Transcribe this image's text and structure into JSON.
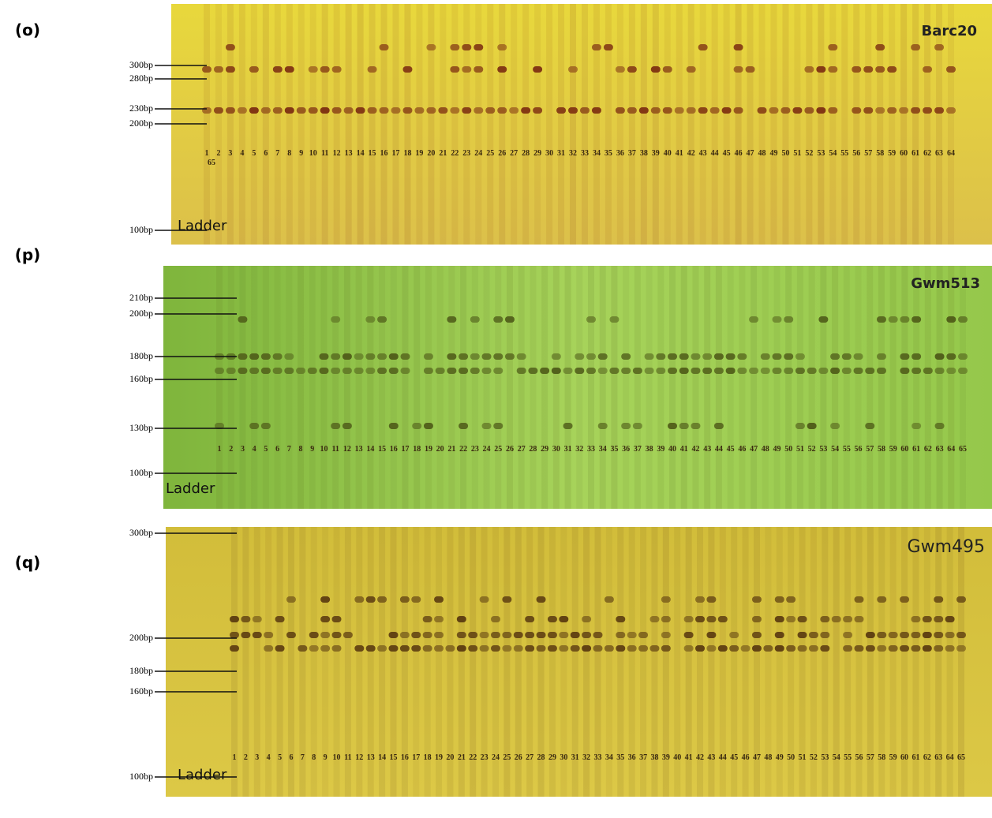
{
  "panels": [
    {
      "label": "(o)",
      "marker": "Barc20",
      "ladder": "Ladder",
      "size_labels": [
        "300bp",
        "280bp",
        "230bp",
        "200bp",
        "100bp"
      ],
      "lanes": [
        "1",
        "2",
        "3",
        "4",
        "5",
        "6",
        "7",
        "8",
        "9",
        "10",
        "11",
        "12",
        "13",
        "14",
        "15",
        "16",
        "17",
        "18",
        "19",
        "20",
        "21",
        "22",
        "23",
        "24",
        "25",
        "26",
        "27",
        "28",
        "29",
        "30",
        "31",
        "32",
        "33",
        "34",
        "35",
        "36",
        "37",
        "38",
        "39",
        "40",
        "41",
        "42",
        "43",
        "44",
        "45",
        "46",
        "47",
        "48",
        "49",
        "50",
        "51",
        "52",
        "53",
        "54",
        "55",
        "56",
        "57",
        "58",
        "59",
        "60",
        "61",
        "62",
        "63",
        "64"
      ],
      "extra_lane": "65"
    },
    {
      "label": "(p)",
      "marker": "Gwm513",
      "ladder": "Ladder",
      "size_labels": [
        "210bp",
        "200bp",
        "180bp",
        "160bp",
        "130bp",
        "100bp"
      ],
      "lanes": [
        "1",
        "2",
        "3",
        "4",
        "5",
        "6",
        "7",
        "8",
        "9",
        "10",
        "11",
        "12",
        "13",
        "14",
        "15",
        "16",
        "17",
        "18",
        "19",
        "20",
        "21",
        "22",
        "23",
        "24",
        "25",
        "26",
        "27",
        "28",
        "29",
        "30",
        "31",
        "32",
        "33",
        "34",
        "35",
        "36",
        "37",
        "38",
        "39",
        "40",
        "41",
        "42",
        "43",
        "44",
        "45",
        "46",
        "47",
        "48",
        "49",
        "50",
        "51",
        "52",
        "53",
        "54",
        "55",
        "56",
        "57",
        "58",
        "59",
        "60",
        "61",
        "62",
        "63",
        "64",
        "65"
      ]
    },
    {
      "label": "(q)",
      "marker": "Gwm495",
      "ladder": "Ladder",
      "size_labels": [
        "300bp",
        "200bp",
        "180bp",
        "160bp",
        "100bp"
      ],
      "lanes": [
        "1",
        "2",
        "3",
        "4",
        "5",
        "6",
        "7",
        "8",
        "9",
        "10",
        "11",
        "12",
        "13",
        "14",
        "15",
        "16",
        "17",
        "18",
        "19",
        "20",
        "21",
        "22",
        "23",
        "24",
        "25",
        "26",
        "27",
        "28",
        "29",
        "30",
        "31",
        "32",
        "33",
        "34",
        "35",
        "36",
        "37",
        "38",
        "39",
        "40",
        "41",
        "42",
        "43",
        "44",
        "45",
        "46",
        "47",
        "48",
        "49",
        "50",
        "51",
        "52",
        "53",
        "54",
        "55",
        "56",
        "57",
        "58",
        "59",
        "60",
        "61",
        "62",
        "63",
        "64",
        "65"
      ]
    }
  ]
}
